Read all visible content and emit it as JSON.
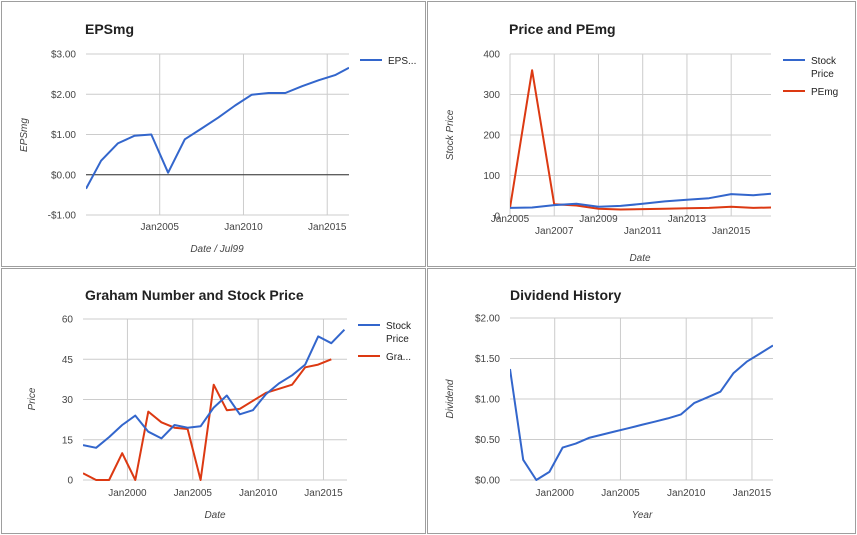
{
  "chart_data": [
    {
      "type": "line",
      "title": "EPSmg",
      "xlabel": "Date / Jul99",
      "ylabel": "EPSmg",
      "xlim": [
        2000.6,
        2016.3
      ],
      "ylim": [
        -1.0,
        3.0
      ],
      "yticks": [
        -1.0,
        0.0,
        1.0,
        2.0,
        3.0
      ],
      "ytick_labels": [
        "-$1.00",
        "$0.00",
        "$1.00",
        "$2.00",
        "$3.00"
      ],
      "xticks": [
        2005,
        2010,
        2015
      ],
      "xtick_labels": [
        "Jan2005",
        "Jan2010",
        "Jan2015"
      ],
      "zero_line": true,
      "colors": [
        "#3366cc"
      ],
      "series": [
        {
          "name": "EPS...",
          "x": [
            2000.6,
            2001.5,
            2002.5,
            2003.5,
            2004.5,
            2005.5,
            2006.5,
            2007.5,
            2008.5,
            2009.5,
            2010.5,
            2011.5,
            2012.5,
            2013.5,
            2014.5,
            2015.5,
            2016.3
          ],
          "y": [
            -0.35,
            0.35,
            0.78,
            0.97,
            1.0,
            0.05,
            0.88,
            1.15,
            1.42,
            1.72,
            1.99,
            2.03,
            2.03,
            2.2,
            2.35,
            2.48,
            2.66
          ]
        }
      ]
    },
    {
      "type": "line",
      "title": "Price and PEmg",
      "xlabel": "Date",
      "ylabel": "Stock Price",
      "xlim": [
        2005.0,
        2016.8
      ],
      "ylim": [
        0,
        400
      ],
      "yticks": [
        0,
        100,
        200,
        300,
        400
      ],
      "ytick_labels": [
        "0",
        "100",
        "200",
        "300",
        "400"
      ],
      "xticks": [
        2005,
        2007,
        2009,
        2011,
        2013,
        2015
      ],
      "xtick_labels": [
        "Jan2005",
        "Jan2007",
        "Jan2009",
        "Jan2011",
        "Jan2013",
        "Jan2015"
      ],
      "colors": [
        "#3366cc",
        "#dc3912"
      ],
      "series": [
        {
          "name": "Stock Price",
          "x": [
            2005.0,
            2006.0,
            2007.0,
            2008.0,
            2009.0,
            2010.0,
            2011.0,
            2012.0,
            2013.0,
            2014.0,
            2015.0,
            2016.0,
            2016.8
          ],
          "y": [
            20,
            21,
            27,
            30,
            23,
            25,
            30,
            36,
            40,
            44,
            54,
            51,
            55
          ]
        },
        {
          "name": "PEmg",
          "x": [
            2005.0,
            2006.0,
            2007.0,
            2008.0,
            2009.0,
            2010.0,
            2011.0,
            2012.0,
            2013.0,
            2014.0,
            2015.0,
            2016.0,
            2016.8
          ],
          "y": [
            20,
            360,
            29,
            26,
            18,
            16,
            17,
            18,
            19,
            20,
            23,
            20,
            21
          ]
        }
      ]
    },
    {
      "type": "line",
      "title": "Graham Number and Stock Price",
      "xlabel": "Date",
      "ylabel": "Price",
      "xlim": [
        1996.6,
        2016.8
      ],
      "ylim": [
        0,
        60
      ],
      "yticks": [
        0,
        15,
        30,
        45,
        60
      ],
      "ytick_labels": [
        "0",
        "15",
        "30",
        "45",
        "60"
      ],
      "xticks": [
        2000,
        2005,
        2010,
        2015
      ],
      "xtick_labels": [
        "Jan2000",
        "Jan2005",
        "Jan2010",
        "Jan2015"
      ],
      "colors": [
        "#3366cc",
        "#dc3912"
      ],
      "series": [
        {
          "name": "Stock Price",
          "x": [
            1996.6,
            1997.6,
            1998.6,
            1999.6,
            2000.6,
            2001.6,
            2002.6,
            2003.6,
            2004.6,
            2005.6,
            2006.6,
            2007.6,
            2008.6,
            2009.6,
            2010.6,
            2011.6,
            2012.6,
            2013.6,
            2014.6,
            2015.6,
            2016.6
          ],
          "y": [
            13,
            12,
            16,
            20.5,
            24,
            18,
            15.5,
            20.5,
            19.5,
            20,
            27,
            31.5,
            24.5,
            26,
            32,
            36,
            39,
            43,
            53.5,
            51,
            56
          ]
        },
        {
          "name": "Gra...",
          "x": [
            1996.6,
            1997.6,
            1998.6,
            1999.6,
            2000.6,
            2001.6,
            2002.6,
            2003.6,
            2004.6,
            2005.6,
            2006.6,
            2007.6,
            2008.6,
            2009.6,
            2010.6,
            2011.6,
            2012.6,
            2013.6,
            2014.6,
            2015.6
          ],
          "y": [
            2.5,
            0,
            0,
            10,
            0,
            25.5,
            21.5,
            19.5,
            19,
            0,
            35.5,
            26,
            26.5,
            29.5,
            32.5,
            34,
            35.5,
            42,
            43,
            45
          ]
        }
      ]
    },
    {
      "type": "line",
      "title": "Dividend History",
      "xlabel": "Year",
      "ylabel": "Dividend",
      "xlim": [
        1996.6,
        2016.6
      ],
      "ylim": [
        0,
        2.0
      ],
      "yticks": [
        0,
        0.5,
        1.0,
        1.5,
        2.0
      ],
      "ytick_labels": [
        "$0.00",
        "$0.50",
        "$1.00",
        "$1.50",
        "$2.00"
      ],
      "xticks": [
        2000,
        2005,
        2010,
        2015
      ],
      "xtick_labels": [
        "Jan2000",
        "Jan2005",
        "Jan2010",
        "Jan2015"
      ],
      "colors": [
        "#3366cc"
      ],
      "series": [
        {
          "name": "",
          "x": [
            1996.6,
            1997.6,
            1998.6,
            1999.6,
            2000.6,
            2001.6,
            2002.6,
            2003.6,
            2004.6,
            2005.6,
            2006.6,
            2007.6,
            2008.6,
            2009.6,
            2010.6,
            2011.6,
            2012.6,
            2013.6,
            2014.6,
            2015.6,
            2016.6
          ],
          "y": [
            1.37,
            0.25,
            0.0,
            0.1,
            0.4,
            0.45,
            0.52,
            0.56,
            0.6,
            0.64,
            0.68,
            0.72,
            0.76,
            0.81,
            0.95,
            1.02,
            1.09,
            1.32,
            1.46,
            1.56,
            1.66
          ]
        }
      ]
    }
  ]
}
